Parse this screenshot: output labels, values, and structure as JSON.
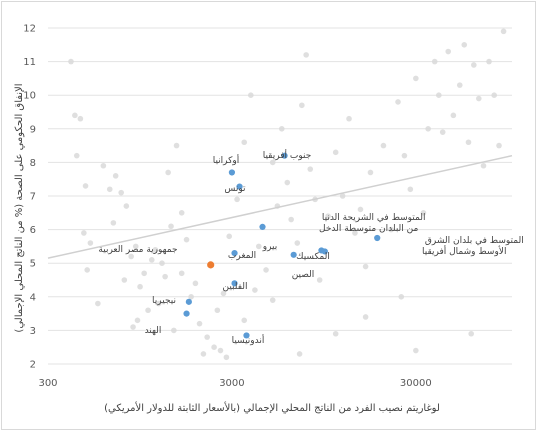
{
  "chart_data": {
    "type": "scatter",
    "title": "",
    "xlabel": "لوغاريتم نصيب الفرد من الناتج المحلي الإجمالي (بالأسعار الثابتة للدولار الأمريكي)",
    "ylabel": "الإنفاق الحكومي على الصحة (% من الناتج المحلي الإجمالي)",
    "x_scale": "log",
    "xlim": [
      300,
      100000
    ],
    "x_ticks": [
      "300",
      "3000",
      "30000"
    ],
    "ylim": [
      2,
      12
    ],
    "y_ticks": [
      "2",
      "3",
      "4",
      "5",
      "6",
      "7",
      "8",
      "9",
      "10",
      "11",
      "12"
    ],
    "grid": "horizontal",
    "legend": "none",
    "colors": {
      "highlight": "#5b9bd5",
      "focus": "#ed7d31",
      "background": "#d9d9d9",
      "trend": "#d0d0d0",
      "grid": "#e3e3e3"
    },
    "trendline": {
      "x": [
        300,
        100000
      ],
      "y": [
        5.15,
        8.2
      ]
    },
    "labeled_points": [
      {
        "label": "جنوب أفريقيا",
        "x": 5800,
        "y": 8.2
      },
      {
        "label": "أوكرانيا",
        "x": 3000,
        "y": 7.7
      },
      {
        "label": "تونس",
        "x": 3300,
        "y": 7.28
      },
      {
        "label": "المتوسط في الشريحة الدنيا من البلدان متوسطة الدخل",
        "x": 4400,
        "y": 6.08
      },
      {
        "label": "المتوسط في بلدان الشرق الأوسط وشمال أفريقيا",
        "x": 18500,
        "y": 5.75
      },
      {
        "label": "بيرو",
        "x": 6500,
        "y": 5.25
      },
      {
        "label": "المكسيك",
        "x": 9600,
        "y": 5.35
      },
      {
        "label": "الصين",
        "x": 9200,
        "y": 5.38
      },
      {
        "label": "المغرب",
        "x": 3100,
        "y": 5.3
      },
      {
        "label": "جمهورية مصر العربية",
        "x": 2300,
        "y": 4.95,
        "focus": true
      },
      {
        "label": "الفلبين",
        "x": 3100,
        "y": 4.4
      },
      {
        "label": "نيجيريا",
        "x": 1750,
        "y": 3.85
      },
      {
        "label": "الهند",
        "x": 1700,
        "y": 3.5
      },
      {
        "label": "أندونيسيا",
        "x": 3600,
        "y": 2.85
      }
    ],
    "background_points": [
      {
        "x": 400,
        "y": 11.0
      },
      {
        "x": 420,
        "y": 9.4
      },
      {
        "x": 450,
        "y": 9.3
      },
      {
        "x": 430,
        "y": 8.2
      },
      {
        "x": 480,
        "y": 7.3
      },
      {
        "x": 470,
        "y": 5.9
      },
      {
        "x": 510,
        "y": 5.6
      },
      {
        "x": 490,
        "y": 4.8
      },
      {
        "x": 560,
        "y": 3.8
      },
      {
        "x": 600,
        "y": 7.9
      },
      {
        "x": 650,
        "y": 7.2
      },
      {
        "x": 700,
        "y": 7.6
      },
      {
        "x": 750,
        "y": 7.1
      },
      {
        "x": 680,
        "y": 6.2
      },
      {
        "x": 800,
        "y": 6.7
      },
      {
        "x": 850,
        "y": 5.2
      },
      {
        "x": 900,
        "y": 5.5
      },
      {
        "x": 780,
        "y": 4.5
      },
      {
        "x": 950,
        "y": 4.3
      },
      {
        "x": 1000,
        "y": 4.7
      },
      {
        "x": 1100,
        "y": 5.1
      },
      {
        "x": 1050,
        "y": 3.6
      },
      {
        "x": 920,
        "y": 3.3
      },
      {
        "x": 870,
        "y": 3.1
      },
      {
        "x": 1200,
        "y": 3.8
      },
      {
        "x": 1250,
        "y": 5.0
      },
      {
        "x": 1300,
        "y": 4.6
      },
      {
        "x": 1400,
        "y": 6.1
      },
      {
        "x": 1350,
        "y": 7.7
      },
      {
        "x": 1500,
        "y": 8.5
      },
      {
        "x": 1600,
        "y": 6.5
      },
      {
        "x": 1700,
        "y": 5.7
      },
      {
        "x": 1900,
        "y": 4.4
      },
      {
        "x": 2000,
        "y": 3.2
      },
      {
        "x": 2100,
        "y": 2.3
      },
      {
        "x": 2200,
        "y": 2.8
      },
      {
        "x": 2400,
        "y": 2.5
      },
      {
        "x": 2600,
        "y": 2.4
      },
      {
        "x": 2800,
        "y": 2.2
      },
      {
        "x": 2900,
        "y": 5.8
      },
      {
        "x": 3200,
        "y": 6.9
      },
      {
        "x": 3500,
        "y": 8.6
      },
      {
        "x": 3800,
        "y": 10.0
      },
      {
        "x": 4200,
        "y": 5.5
      },
      {
        "x": 4600,
        "y": 4.8
      },
      {
        "x": 5000,
        "y": 8.0
      },
      {
        "x": 5300,
        "y": 6.7
      },
      {
        "x": 5600,
        "y": 9.0
      },
      {
        "x": 6000,
        "y": 7.4
      },
      {
        "x": 6300,
        "y": 6.3
      },
      {
        "x": 6800,
        "y": 5.6
      },
      {
        "x": 7200,
        "y": 9.7
      },
      {
        "x": 7600,
        "y": 11.2
      },
      {
        "x": 8000,
        "y": 7.8
      },
      {
        "x": 8500,
        "y": 6.9
      },
      {
        "x": 9000,
        "y": 4.5
      },
      {
        "x": 10000,
        "y": 6.4
      },
      {
        "x": 11000,
        "y": 8.3
      },
      {
        "x": 12000,
        "y": 7.0
      },
      {
        "x": 13000,
        "y": 9.3
      },
      {
        "x": 14000,
        "y": 5.9
      },
      {
        "x": 15000,
        "y": 6.6
      },
      {
        "x": 16000,
        "y": 4.9
      },
      {
        "x": 17000,
        "y": 7.7
      },
      {
        "x": 20000,
        "y": 8.5
      },
      {
        "x": 22000,
        "y": 6.0
      },
      {
        "x": 24000,
        "y": 9.8
      },
      {
        "x": 26000,
        "y": 8.2
      },
      {
        "x": 28000,
        "y": 7.2
      },
      {
        "x": 30000,
        "y": 10.5
      },
      {
        "x": 33000,
        "y": 6.5
      },
      {
        "x": 35000,
        "y": 9.0
      },
      {
        "x": 38000,
        "y": 11.0
      },
      {
        "x": 40000,
        "y": 10.0
      },
      {
        "x": 42000,
        "y": 8.9
      },
      {
        "x": 45000,
        "y": 11.3
      },
      {
        "x": 48000,
        "y": 9.4
      },
      {
        "x": 52000,
        "y": 10.3
      },
      {
        "x": 55000,
        "y": 11.5
      },
      {
        "x": 58000,
        "y": 8.6
      },
      {
        "x": 62000,
        "y": 10.9
      },
      {
        "x": 66000,
        "y": 9.9
      },
      {
        "x": 70000,
        "y": 7.9
      },
      {
        "x": 75000,
        "y": 11.0
      },
      {
        "x": 80000,
        "y": 10.0
      },
      {
        "x": 85000,
        "y": 8.5
      },
      {
        "x": 90000,
        "y": 11.9
      },
      {
        "x": 60000,
        "y": 2.9
      },
      {
        "x": 30000,
        "y": 2.4
      },
      {
        "x": 25000,
        "y": 4.0
      },
      {
        "x": 16000,
        "y": 3.4
      },
      {
        "x": 11000,
        "y": 2.9
      },
      {
        "x": 7000,
        "y": 2.3
      },
      {
        "x": 5000,
        "y": 3.9
      },
      {
        "x": 4000,
        "y": 4.2
      },
      {
        "x": 3500,
        "y": 3.3
      },
      {
        "x": 2700,
        "y": 4.1
      },
      {
        "x": 2500,
        "y": 3.6
      },
      {
        "x": 1800,
        "y": 4.0
      },
      {
        "x": 1600,
        "y": 4.7
      },
      {
        "x": 1150,
        "y": 5.4
      },
      {
        "x": 1450,
        "y": 3.0
      }
    ]
  }
}
